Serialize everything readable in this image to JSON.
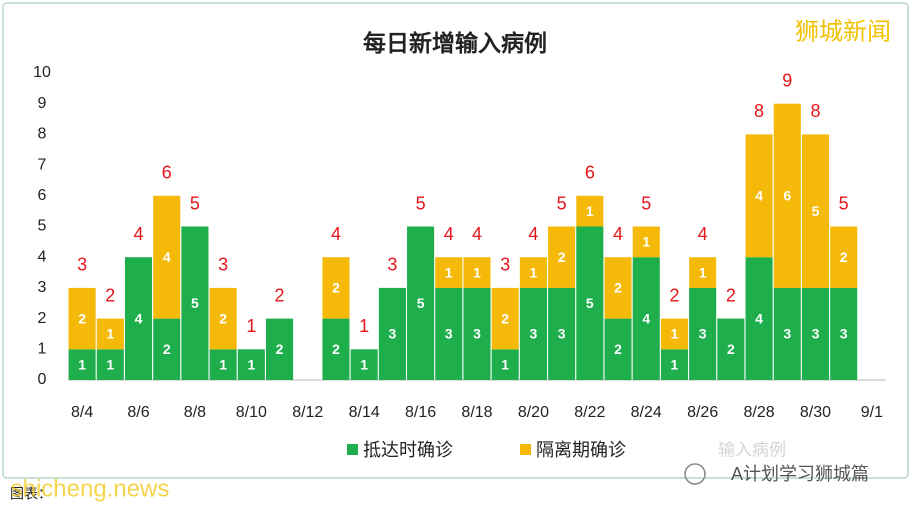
{
  "chart_data": {
    "type": "stacked_bar",
    "title": "每日新增输入病例",
    "categories": [
      "8/4",
      null,
      "8/6",
      null,
      "8/8",
      null,
      "8/10",
      null,
      "8/12",
      null,
      "8/14",
      null,
      "8/16",
      null,
      "8/18",
      null,
      "8/20",
      null,
      "8/22",
      null,
      "8/24",
      null,
      "8/26",
      null,
      "8/28",
      null,
      "8/30",
      null,
      "9/1"
    ],
    "series": [
      {
        "name": "抵达时确诊",
        "color": "#1eae4b",
        "values": [
          1,
          1,
          4,
          2,
          5,
          1,
          1,
          2,
          0,
          2,
          1,
          3,
          5,
          3,
          3,
          1,
          3,
          3,
          5,
          2,
          4,
          1,
          3,
          2,
          4,
          3,
          3,
          3,
          null
        ]
      },
      {
        "name": "隔离期确诊",
        "color": "#f5b90a",
        "values": [
          2,
          1,
          0,
          4,
          0,
          2,
          0,
          0,
          0,
          2,
          0,
          0,
          0,
          1,
          1,
          2,
          1,
          2,
          1,
          2,
          1,
          1,
          1,
          0,
          4,
          6,
          5,
          2,
          null
        ]
      }
    ],
    "totals": [
      3,
      2,
      4,
      6,
      5,
      3,
      1,
      2,
      null,
      4,
      1,
      3,
      5,
      4,
      4,
      3,
      4,
      5,
      6,
      4,
      5,
      2,
      4,
      2,
      8,
      9,
      8,
      5,
      null
    ],
    "total_color": "#e8141b",
    "ylim": [
      0,
      10
    ],
    "yticks": [
      0,
      1,
      2,
      3,
      4,
      5,
      6,
      7,
      8,
      9,
      10
    ],
    "grid": false,
    "legend": "bottom"
  },
  "watermarks": {
    "brand": "狮城新闻",
    "faded": "输入病例",
    "account": "A计划学习狮城篇",
    "site": "shicheng.news",
    "caption": "图表："
  }
}
